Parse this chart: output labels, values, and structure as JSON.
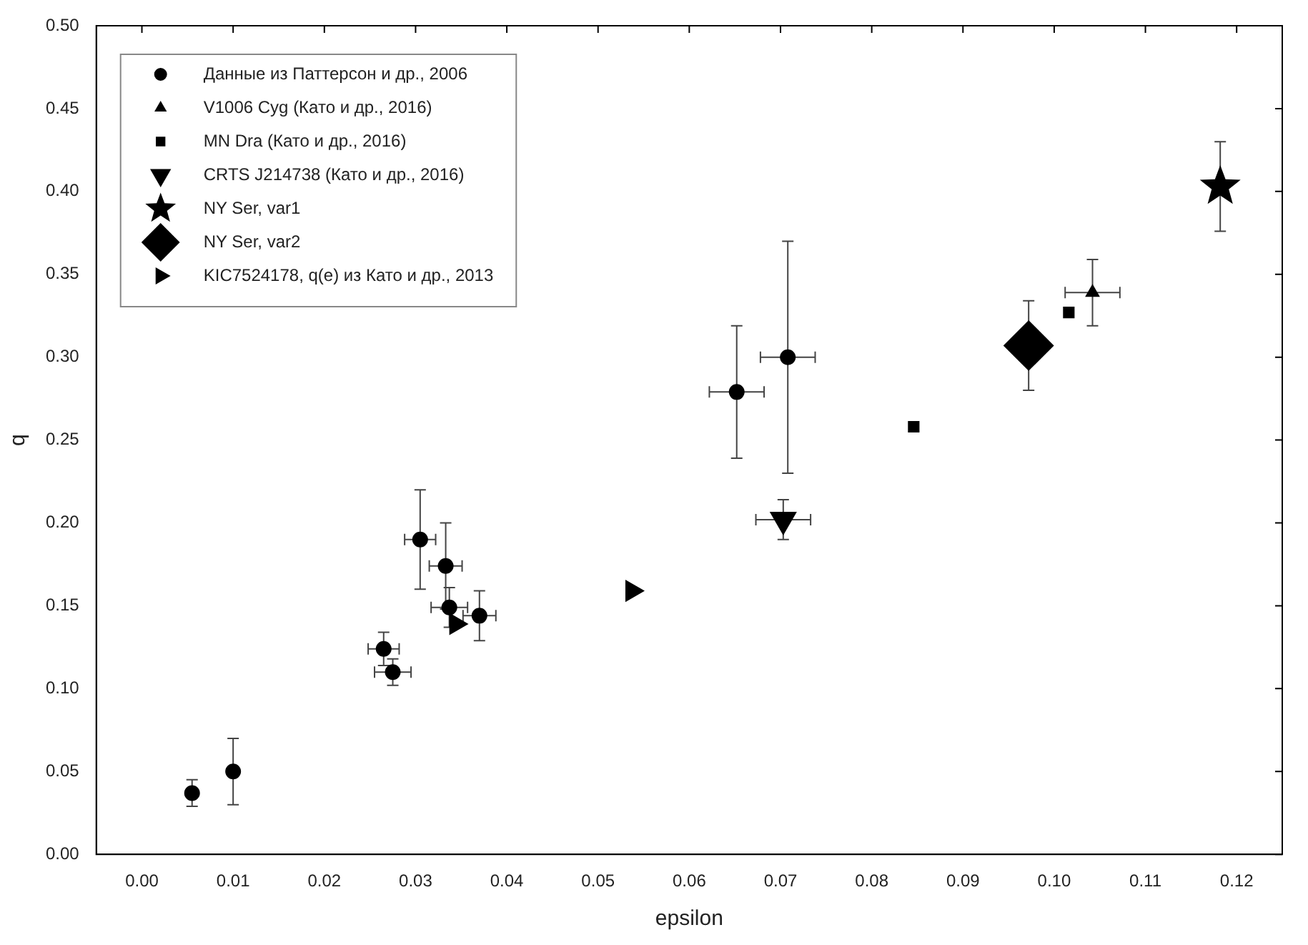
{
  "chart_data": {
    "type": "scatter",
    "xlabel": "epsilon",
    "ylabel": "q",
    "xlim": [
      -0.005,
      0.125
    ],
    "xticks": [
      {
        "value": 0,
        "label": "0.00"
      },
      {
        "value": 0.01,
        "label": "0.01"
      },
      {
        "value": 0.02,
        "label": "0.02"
      },
      {
        "value": 0.03,
        "label": "0.03"
      },
      {
        "value": 0.04,
        "label": "0.04"
      },
      {
        "value": 0.05,
        "label": "0.05"
      },
      {
        "value": 0.06,
        "label": "0.06"
      },
      {
        "value": 0.07,
        "label": "0.07"
      },
      {
        "value": 0.08,
        "label": "0.08"
      },
      {
        "value": 0.09,
        "label": "0.09"
      },
      {
        "value": 0.1,
        "label": "0.10"
      },
      {
        "value": 0.11,
        "label": "0.11"
      },
      {
        "value": 0.12,
        "label": "0.12"
      }
    ],
    "ylim": [
      0,
      0.5
    ],
    "yticks": [
      {
        "value": 0,
        "label": "0.00"
      },
      {
        "value": 0.05,
        "label": "0.05"
      },
      {
        "value": 0.1,
        "label": "0.10"
      },
      {
        "value": 0.15,
        "label": "0.15"
      },
      {
        "value": 0.2,
        "label": "0.20"
      },
      {
        "value": 0.25,
        "label": "0.25"
      },
      {
        "value": 0.3,
        "label": "0.30"
      },
      {
        "value": 0.35,
        "label": "0.35"
      },
      {
        "value": 0.4,
        "label": "0.40"
      },
      {
        "value": 0.45,
        "label": "0.45"
      },
      {
        "value": 0.5,
        "label": "0.50"
      }
    ],
    "grid": false,
    "legend": "top left",
    "series": [
      {
        "name": "Данные из Паттерсон и др., 2006",
        "color": "#000000",
        "marker": "circle",
        "x": [
          0.0055,
          0.01,
          0.0265,
          0.0275,
          0.0305,
          0.0333,
          0.0337,
          0.037,
          0.0652,
          0.0708
        ],
        "values": [
          0.037,
          0.05,
          0.124,
          0.11,
          0.19,
          0.174,
          0.149,
          0.144,
          0.279,
          0.3
        ],
        "errors": [
          0.008,
          0.02,
          0.01,
          0.008,
          0.03,
          0.026,
          0.012,
          0.015,
          0.04,
          0.07
        ],
        "xerrors": [
          null,
          null,
          0.0017,
          0.002,
          0.0017,
          0.0018,
          0.002,
          0.0018,
          0.003,
          0.003
        ]
      },
      {
        "name": "V1006 Cyg (Като и др., 2016)",
        "color": "#000000",
        "marker": "triangle",
        "x": [
          0.1042
        ],
        "values": [
          0.339
        ],
        "errors": [
          0.02
        ],
        "xerrors": [
          0.003
        ]
      },
      {
        "name": "MN Dra (Като и др., 2016)",
        "color": "#000000",
        "marker": "square",
        "x": [
          0.0846,
          0.1016
        ],
        "values": [
          0.258,
          0.327
        ]
      },
      {
        "name": "CRTS J214738 (Като и др., 2016)",
        "color": "#000000",
        "marker": "triangle-down",
        "x": [
          0.0703
        ],
        "values": [
          0.202
        ],
        "errors": [
          0.012
        ],
        "xerrors": [
          0.003
        ]
      },
      {
        "name": "NY Ser, var1",
        "color": "#000000",
        "marker": "star",
        "x": [
          0.1182
        ],
        "values": [
          0.403
        ],
        "errors": [
          0.027
        ]
      },
      {
        "name": "NY Ser, var2",
        "color": "#000000",
        "marker": "diamond",
        "x": [
          0.0972
        ],
        "values": [
          0.307
        ],
        "errors": [
          0.027
        ]
      },
      {
        "name": "KIC7524178, q(e) из Като и др., 2013",
        "color": "#000000",
        "marker": "triangle-right",
        "x": [
          0.0344,
          0.0537
        ],
        "values": [
          0.139,
          0.159
        ]
      }
    ]
  }
}
